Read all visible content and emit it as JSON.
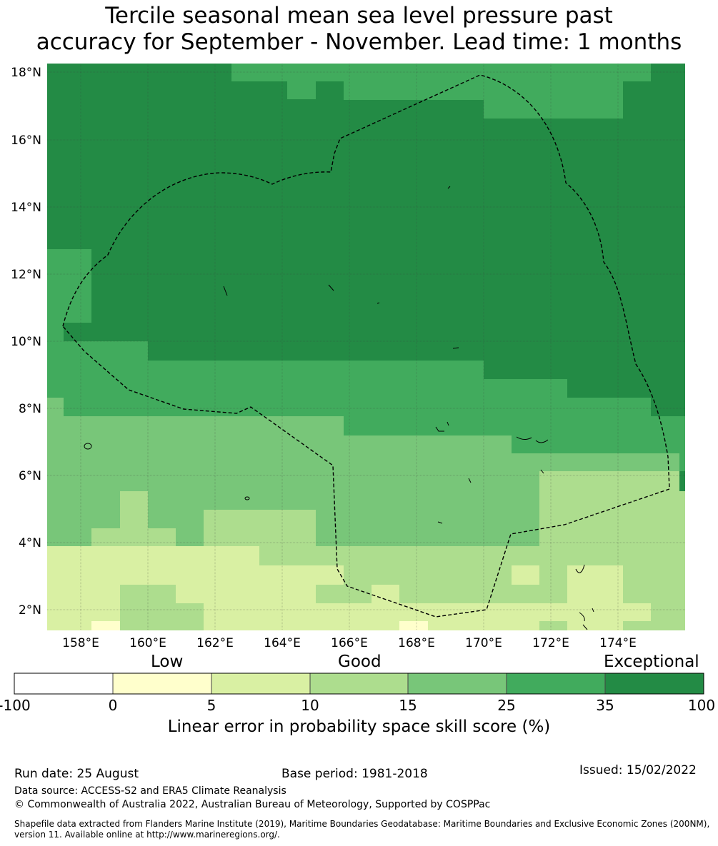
{
  "title": {
    "line1": "Tercile seasonal mean sea level pressure past",
    "line2": "accuracy for September - November. Lead time: 1 months"
  },
  "map": {
    "lat_labels": [
      "18°N",
      "16°N",
      "14°N",
      "12°N",
      "10°N",
      "8°N",
      "6°N",
      "4°N",
      "2°N"
    ],
    "lon_labels": [
      "158°E",
      "160°E",
      "162°E",
      "164°E",
      "166°E",
      "168°E",
      "170°E",
      "172°E",
      "174°E"
    ],
    "colors": {
      "exceptional": "#238b45",
      "c25_35": "#41ab5d",
      "c15_25": "#78c679",
      "c10_15": "#addd8e",
      "c5_10": "#d9f0a3",
      "c0_5": "#ffffcc",
      "neg": "#ffffff"
    }
  },
  "legend": {
    "category_low": "Low",
    "category_good": "Good",
    "category_exceptional": "Exceptional",
    "ticks": [
      "-100",
      "0",
      "5",
      "10",
      "15",
      "25",
      "35",
      "100"
    ],
    "title": "Linear error in probability space skill score (%)"
  },
  "footer": {
    "run_date": "Run date: 25 August",
    "base_period": "Base period: 1981-2018",
    "issued": "Issued: 15/02/2022",
    "data_source": "Data source: ACCESS-S2 and ERA5 Climate Reanalysis",
    "copyright": "© Commonwealth of Australia 2022, Australian Bureau of Meteorology, Supported by COSPPac",
    "shapefile": "Shapefile data extracted from Flanders Marine Institute (2019), Maritime Boundaries Geodatabase: Maritime Boundaries and Exclusive Economic Zones (200NM), version 11. Available online at http://www.marineregions.org/."
  }
}
